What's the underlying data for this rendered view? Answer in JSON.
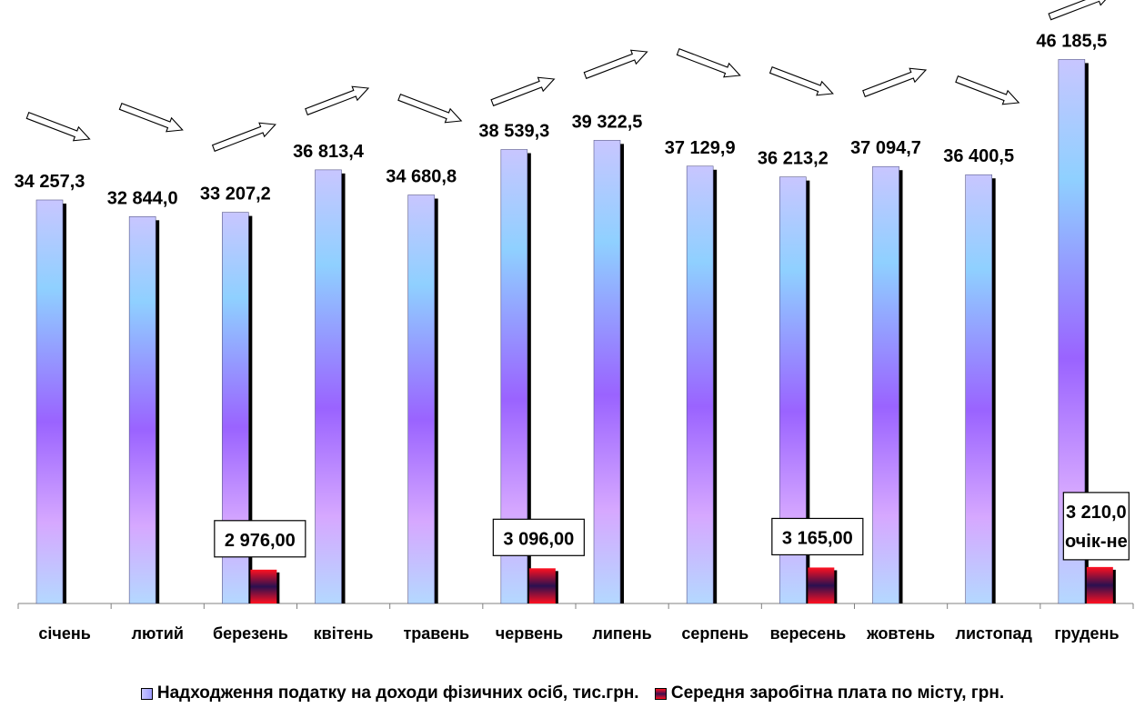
{
  "chart_data": {
    "type": "bar",
    "categories": [
      "січень",
      "лютий",
      "березень",
      "квітень",
      "травень",
      "червень",
      "липень",
      "серпень",
      "вересень",
      "жовтень",
      "листопад",
      "грудень"
    ],
    "series": [
      {
        "name": "Надходження податку на доходи фізичних осіб, тис.грн.",
        "values": [
          34257.3,
          32844.0,
          33207.2,
          36813.4,
          34680.8,
          38539.3,
          39322.5,
          37129.9,
          36213.2,
          37094.7,
          36400.5,
          46185.5
        ],
        "labels": [
          "34 257,3",
          "32 844,0",
          "33 207,2",
          "36 813,4",
          "34 680,8",
          "38 539,3",
          "39 322,5",
          "37 129,9",
          "36 213,2",
          "37 094,7",
          "36 400,5",
          "46 185,5"
        ]
      },
      {
        "name": "Середня заробітна плата по місту, грн.",
        "values": [
          null,
          null,
          2976.0,
          null,
          null,
          3096.0,
          null,
          null,
          3165.0,
          null,
          null,
          3210.0
        ],
        "labels": [
          "",
          "",
          "2 976,00",
          "",
          "",
          "3 096,00",
          "",
          "",
          "3 165,00",
          "",
          "",
          "3 210,0"
        ],
        "label_notes": [
          "",
          "",
          "",
          "",
          "",
          "",
          "",
          "",
          "",
          "",
          "",
          "очік-не"
        ]
      }
    ],
    "trend_arrows": [
      "down",
      "down",
      "up",
      "up",
      "down",
      "up",
      "up",
      "down",
      "down",
      "up",
      "down",
      "up"
    ],
    "grid": false,
    "legend_position": "bottom",
    "colors": {
      "tax_top": "#c8c6ff",
      "tax_mid1": "#8fd0ff",
      "tax_mid2": "#9a63ff",
      "tax_bottom": "#d6a8ff",
      "salary_red": "#ff1020",
      "salary_dark": "#2a1050",
      "shadow": "#000000"
    }
  }
}
